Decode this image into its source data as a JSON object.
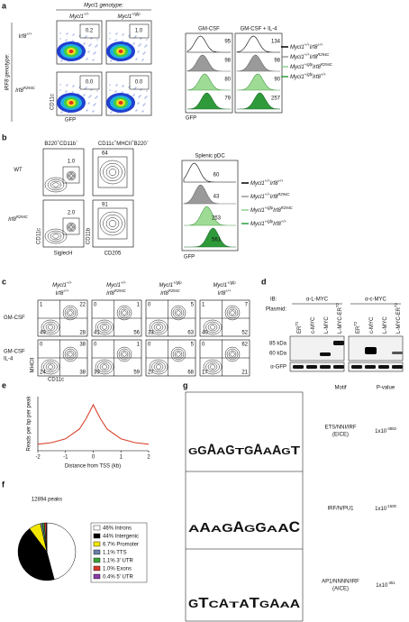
{
  "panel_a": {
    "label": "a",
    "genotype_title": "Mycl1 genotype:",
    "col_headers": [
      [
        "Mycl1",
        "+/+"
      ],
      [
        "Mycl1",
        "+/gfp"
      ]
    ],
    "row_title": "IRF8 genotype:",
    "row_headers": [
      [
        "Irf8",
        "+/+"
      ],
      [
        "Irf8",
        "R294C"
      ]
    ],
    "gates": [
      "0.2",
      "1.0",
      "0.0",
      "0.0"
    ],
    "y_axis": "CD11c",
    "x_axis": "GFP",
    "hist_headers": [
      "GM-CSF",
      "GM-CSF + IL-4"
    ],
    "hist_values": [
      [
        95,
        98,
        80,
        79
      ],
      [
        134,
        98,
        90,
        257
      ]
    ],
    "hist_x_axis": "GFP",
    "legend": [
      [
        "Mycl1",
        "+/+",
        "Irf8",
        "+/+"
      ],
      [
        "Mycl1",
        "+/+",
        "Irf8",
        "R294C"
      ],
      [
        "Mycl1",
        "+/gfp",
        "Irf8",
        "R294C"
      ],
      [
        "Mycl1",
        "+/gfp",
        "Irf8",
        "+/+"
      ]
    ]
  },
  "panel_b": {
    "label": "b",
    "col_headers": [
      [
        "B220",
        "+",
        "CD11b",
        "−"
      ],
      [
        "CD11c",
        "+",
        "MHCII",
        "+",
        "B220",
        "−"
      ]
    ],
    "row_headers": [
      [
        "WT"
      ],
      [
        "Irf8",
        "R294C"
      ]
    ],
    "gates": [
      "1.0",
      "64",
      "2.0",
      "91"
    ],
    "axes": {
      "y1": "CD11c",
      "x1": "SiglecH",
      "y2": "CD11b",
      "x2": "CD205"
    },
    "hist_title": "Splenic pDC",
    "hist_values": [
      60,
      43,
      253,
      561
    ],
    "hist_x_axis": "GFP",
    "legend": [
      [
        "Mycl1",
        "+/+",
        "Irf8",
        "+/+"
      ],
      [
        "Mycl1",
        "+/+",
        "Irf8",
        "R294C"
      ],
      [
        "Mycl1",
        "+/gfp",
        "Irf8",
        "R294C"
      ],
      [
        "Mycl1",
        "+/gfp",
        "Irf8",
        "+/+"
      ]
    ]
  },
  "panel_c": {
    "label": "c",
    "col_headers": [
      [
        [
          "Mycl1",
          "+/+"
        ],
        [
          "Irf8",
          "+/+"
        ]
      ],
      [
        [
          "Mycl1",
          "+/+"
        ],
        [
          "Irf8",
          "R294C"
        ]
      ],
      [
        [
          "Mycl1",
          "+/gfp"
        ],
        [
          "Irf8",
          "R294C"
        ]
      ],
      [
        [
          "Mycl1",
          "+/gfp"
        ],
        [
          "Irf8",
          "+/+"
        ]
      ]
    ],
    "row_headers": [
      [
        "GM-CSF"
      ],
      [
        "GM-CSF",
        "IL-4"
      ]
    ],
    "quadrants": [
      [
        [
          1,
          22,
          49,
          28
        ],
        [
          0,
          1,
          41,
          56
        ],
        [
          0,
          5,
          33,
          63
        ],
        [
          1,
          7,
          40,
          52
        ]
      ],
      [
        [
          0,
          38,
          24,
          38
        ],
        [
          0,
          1,
          39,
          59
        ],
        [
          0,
          5,
          27,
          68
        ],
        [
          0,
          62,
          17,
          21
        ]
      ]
    ],
    "y_axis": "MHCII",
    "x_axis": "CD11c"
  },
  "panel_d": {
    "label": "d",
    "ib": "IB:",
    "plasmid": "Plasmid:",
    "antibodies": [
      "α-L-MYC",
      "α-c-MYC"
    ],
    "lanes": [
      [
        "ER",
        "T2"
      ],
      [
        "c-MYC"
      ],
      [
        "L-MYC"
      ],
      [
        "L-MYC-ER",
        "T2"
      ]
    ],
    "markers": [
      "85 kDa",
      "60 kDa"
    ],
    "loading": "α-GFP"
  },
  "panel_e": {
    "label": "e",
    "chart": {
      "type": "line",
      "x": [
        -2,
        -1.5,
        -1,
        -0.5,
        -0.25,
        0,
        0.25,
        0.5,
        1,
        1.5,
        2
      ],
      "values": [
        0.12,
        0.15,
        0.22,
        0.4,
        0.6,
        0.85,
        0.6,
        0.4,
        0.22,
        0.15,
        0.12
      ],
      "color": "#d9402b",
      "xlim": [
        -2,
        2
      ],
      "ylim": [
        0,
        1
      ],
      "xticks": [
        -2,
        -1,
        0,
        1,
        2
      ],
      "y_label": "Reads per bp per peak",
      "x_label": "Distance from TSS (kb)"
    }
  },
  "panel_f": {
    "label": "f",
    "title": "12894 peaks",
    "chart": {
      "type": "pie",
      "values": [
        46,
        44,
        6.7,
        1.1,
        1.1,
        1.0,
        0.4
      ],
      "colors": [
        "#ffffff",
        "#000000",
        "#f2e600",
        "#6a7fa8",
        "#3aa33a",
        "#d63a2a",
        "#8a3aa8"
      ]
    },
    "legend": [
      "46% Introns",
      "44% Intergenic",
      "6.7% Promoter",
      "1.1% TTS",
      "1.1% 3' UTR",
      "1.0% Exons",
      "0.4% 5' UTR"
    ]
  },
  "panel_g": {
    "label": "g",
    "headers": [
      "Motif",
      "P-value"
    ],
    "motifs": [
      {
        "logo": [
          "G",
          "G",
          "A",
          "A",
          "G",
          "T",
          "G",
          "A",
          "A",
          "A",
          "G",
          "T"
        ],
        "name": [
          "ETS/NNI/IRF",
          "(EICE)"
        ],
        "pvalue": [
          "1x10",
          "-4883"
        ]
      },
      {
        "logo": [
          "A",
          "A",
          "A",
          "G",
          "A",
          "G",
          "G",
          "A",
          "A",
          "C"
        ],
        "name": [
          "IRF/N/PU1"
        ],
        "pvalue": [
          "1x10",
          "-1500"
        ]
      },
      {
        "logo": [
          "G",
          "T",
          "C",
          "A",
          "T",
          "A",
          "T",
          "G",
          "A",
          "A",
          "A"
        ],
        "name": [
          "AP1/NNNN/IRF",
          "(AICE)"
        ],
        "pvalue": [
          "1x10",
          "-451"
        ]
      }
    ]
  }
}
